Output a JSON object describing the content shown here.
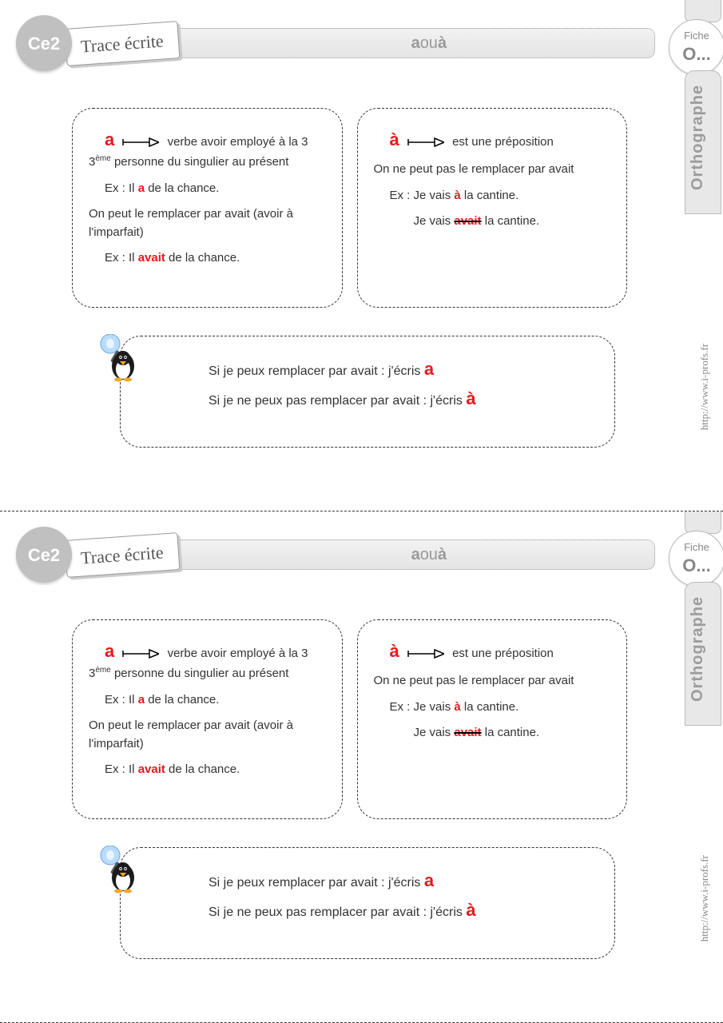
{
  "grade": "Ce2",
  "trace_label": "Trace écrite",
  "title_html": "<b>a</b> ou <b>à</b>",
  "fiche": {
    "label": "Fiche",
    "num": "O..."
  },
  "subject": "Orthographe",
  "url": "http://www.i-profs.fr",
  "colors": {
    "red": "#e41a1c",
    "grey_badge": "#c0c0c0",
    "grey_text": "#9a9a9a",
    "tab_bg": "#e8e8e8"
  },
  "left_box": {
    "lead_letter": "a",
    "lead_text": "verbe avoir employé à la 3",
    "lead_sup": "ème",
    "lead_cont": " personne du singulier au présent",
    "ex1_pre": "Ex : Il ",
    "ex1_bold": "a",
    "ex1_post": " de la chance.",
    "mid": "On peut le remplacer par avait (avoir à l'imparfait)",
    "ex2_pre": "Ex : Il ",
    "ex2_bold": "avait",
    "ex2_post": " de la chance."
  },
  "right_box": {
    "lead_letter": "à",
    "lead_text": "est une préposition",
    "mid": "On ne  peut pas le remplacer par avait",
    "ex1_pre": "Ex : Je vais ",
    "ex1_bold": "à",
    "ex1_post": " la cantine.",
    "ex2_pre": "Je vais ",
    "ex2_strike": "avait",
    "ex2_post": " la cantine."
  },
  "rule": {
    "line1_pre": "Si je peux remplacer par avait : j'écris ",
    "line1_letter": "a",
    "line2_pre": "Si je ne peux pas remplacer par avait : j'écris ",
    "line2_letter": "à"
  }
}
